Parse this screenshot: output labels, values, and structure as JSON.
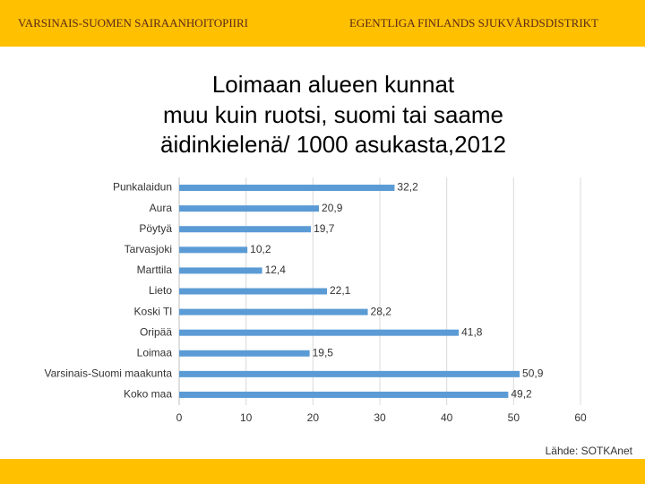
{
  "header": {
    "left": "VARSINAIS-SUOMEN SAIRAANHOITOPIIRI",
    "right": "EGENTLIGA FINLANDS SJUKVÅRDSDISTRIKT"
  },
  "chart_data": {
    "type": "bar",
    "orientation": "horizontal",
    "title": [
      "Loimaan alueen kunnat",
      "muu kuin ruotsi, suomi tai saame",
      "äidinkielenä/ 1000 asukasta,2012"
    ],
    "categories": [
      "Punkalaidun",
      "Aura",
      "Pöytyä",
      "Tarvasjoki",
      "Marttila",
      "Lieto",
      "Koski Tl",
      "Oripää",
      "Loimaa",
      "Varsinais-Suomi maakunta",
      "Koko maa"
    ],
    "values": [
      32.2,
      20.9,
      19.7,
      10.2,
      12.4,
      22.1,
      28.2,
      41.8,
      19.5,
      50.9,
      49.2
    ],
    "value_labels": [
      "32,2",
      "20,9",
      "19,7",
      "10,2",
      "12,4",
      "22,1",
      "28,2",
      "41,8",
      "19,5",
      "50,9",
      "49,2"
    ],
    "color": "#5b9bd5",
    "xlim": [
      0,
      60
    ],
    "xticks": [
      0,
      10,
      20,
      30,
      40,
      50,
      60
    ],
    "grid": true,
    "source": "Lähde: SOTKAnet"
  }
}
